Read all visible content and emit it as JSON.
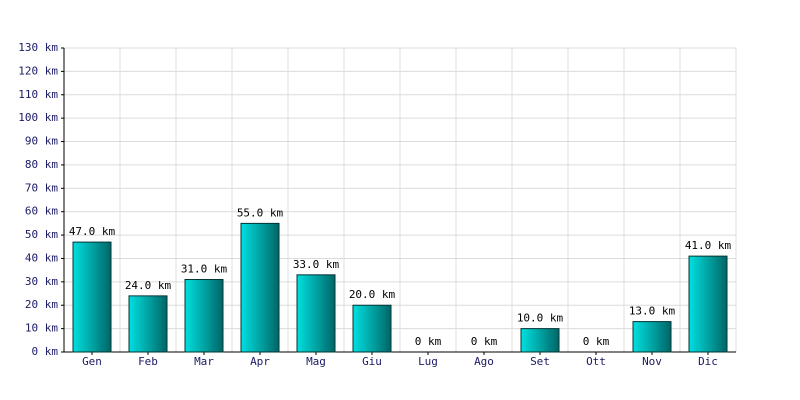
{
  "chart_data": {
    "type": "bar",
    "categories": [
      "Gen",
      "Feb",
      "Mar",
      "Apr",
      "Mag",
      "Giu",
      "Lug",
      "Ago",
      "Set",
      "Ott",
      "Nov",
      "Dic"
    ],
    "values": [
      47,
      24,
      31,
      55,
      33,
      20,
      0,
      0,
      10,
      0,
      13,
      41
    ],
    "value_labels": [
      "47.0 km",
      "24.0 km",
      "31.0 km",
      "55.0 km",
      "33.0 km",
      "20.0 km",
      "0 km",
      "0 km",
      "10.0 km",
      "0 km",
      "13.0 km",
      "41.0 km"
    ],
    "color": "#00e0e0",
    "ylim": [
      0,
      130
    ],
    "yticks": [
      {
        "value": 0,
        "label": "0 km"
      },
      {
        "value": 10,
        "label": "10 km"
      },
      {
        "value": 20,
        "label": "20 km"
      },
      {
        "value": 30,
        "label": "30 km"
      },
      {
        "value": 40,
        "label": "40 km"
      },
      {
        "value": 50,
        "label": "50 km"
      },
      {
        "value": 60,
        "label": "60 km"
      },
      {
        "value": 70,
        "label": "70 km"
      },
      {
        "value": 80,
        "label": "80 km"
      },
      {
        "value": 90,
        "label": "90 km"
      },
      {
        "value": 100,
        "label": "100 km"
      },
      {
        "value": 110,
        "label": "110 km"
      },
      {
        "value": 120,
        "label": "120 km"
      },
      {
        "value": 130,
        "label": "130 km"
      }
    ],
    "grid": true
  }
}
